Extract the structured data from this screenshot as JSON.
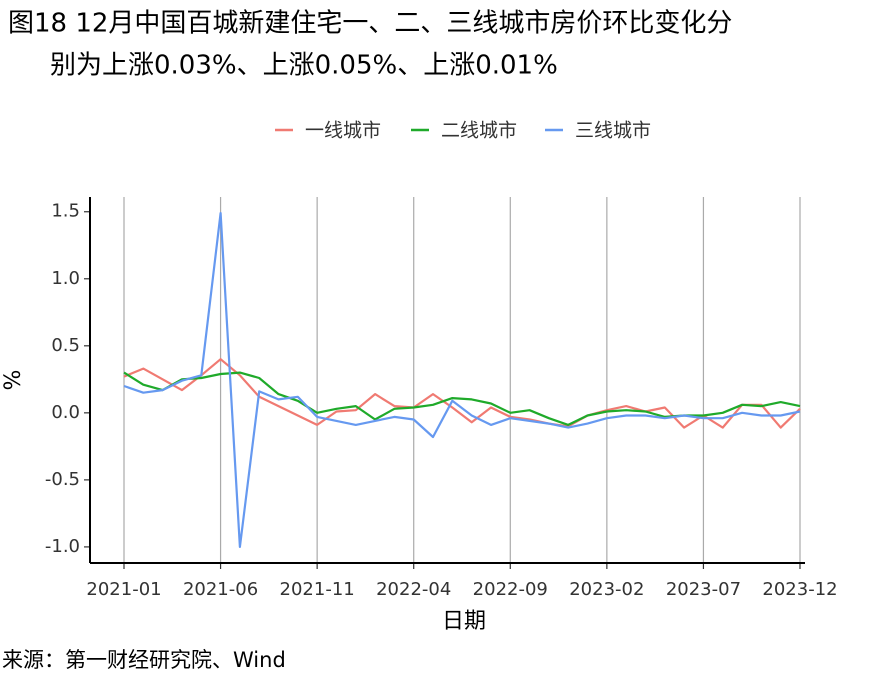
{
  "chart_data": {
    "type": "line",
    "title": [
      "图18 12月中国百城新建住宅一、二、三线城市房价环比变化分",
      "别为上涨0.03%、上涨0.05%、上涨0.01%"
    ],
    "x_label": "日期",
    "y_label": "%",
    "source": "来源：第一财经研究院、Wind",
    "x": [
      "2021-01",
      "2021-02",
      "2021-03",
      "2021-04",
      "2021-05",
      "2021-06",
      "2021-07",
      "2021-08",
      "2021-09",
      "2021-10",
      "2021-11",
      "2021-12",
      "2022-01",
      "2022-02",
      "2022-03",
      "2022-04",
      "2022-05",
      "2022-06",
      "2022-07",
      "2022-08",
      "2022-09",
      "2022-10",
      "2022-11",
      "2022-12",
      "2023-01",
      "2023-02",
      "2023-03",
      "2023-04",
      "2023-05",
      "2023-06",
      "2023-07",
      "2023-08",
      "2023-09",
      "2023-10",
      "2023-11",
      "2023-12"
    ],
    "xticks": [
      "2021-01",
      "2021-06",
      "2021-11",
      "2022-04",
      "2022-09",
      "2023-02",
      "2023-07",
      "2023-12"
    ],
    "ylim": [
      -1.12,
      1.61
    ],
    "yticks": [
      {
        "value": -1,
        "label": "-1.0"
      },
      -0.5,
      {
        "value": 0,
        "label": "0.0"
      },
      0.5,
      {
        "value": 1,
        "label": "1.0"
      },
      1.5
    ],
    "grid": "x",
    "legend": "top",
    "series": [
      {
        "name": "一线城市",
        "color": "#f07a72",
        "values": [
          0.27,
          0.33,
          0.25,
          0.17,
          0.28,
          0.4,
          0.28,
          0.12,
          0.05,
          -0.02,
          -0.09,
          0.01,
          0.02,
          0.14,
          0.05,
          0.04,
          0.14,
          0.04,
          -0.07,
          0.04,
          -0.03,
          -0.05,
          -0.08,
          -0.1,
          -0.02,
          0.02,
          0.05,
          0.01,
          0.04,
          -0.11,
          -0.02,
          -0.11,
          0.06,
          0.06,
          -0.11,
          0.03
        ]
      },
      {
        "name": "二线城市",
        "color": "#1faa2a",
        "values": [
          0.3,
          0.21,
          0.17,
          0.25,
          0.26,
          0.29,
          0.3,
          0.26,
          0.14,
          0.09,
          0.0,
          0.03,
          0.05,
          -0.05,
          0.03,
          0.04,
          0.06,
          0.11,
          0.1,
          0.07,
          0.0,
          0.02,
          -0.04,
          -0.09,
          -0.02,
          0.01,
          0.02,
          0.01,
          -0.03,
          -0.02,
          -0.02,
          0.0,
          0.06,
          0.05,
          0.08,
          0.05
        ]
      },
      {
        "name": "三线城市",
        "color": "#6699f0",
        "values": [
          0.2,
          0.15,
          0.17,
          0.24,
          0.28,
          1.49,
          -1.0,
          0.16,
          0.1,
          0.12,
          -0.03,
          -0.06,
          -0.09,
          -0.06,
          -0.03,
          -0.05,
          -0.18,
          0.09,
          -0.02,
          -0.09,
          -0.04,
          -0.06,
          -0.08,
          -0.11,
          -0.08,
          -0.04,
          -0.02,
          -0.02,
          -0.04,
          -0.02,
          -0.04,
          -0.04,
          0.0,
          -0.02,
          -0.02,
          0.01
        ]
      }
    ]
  }
}
